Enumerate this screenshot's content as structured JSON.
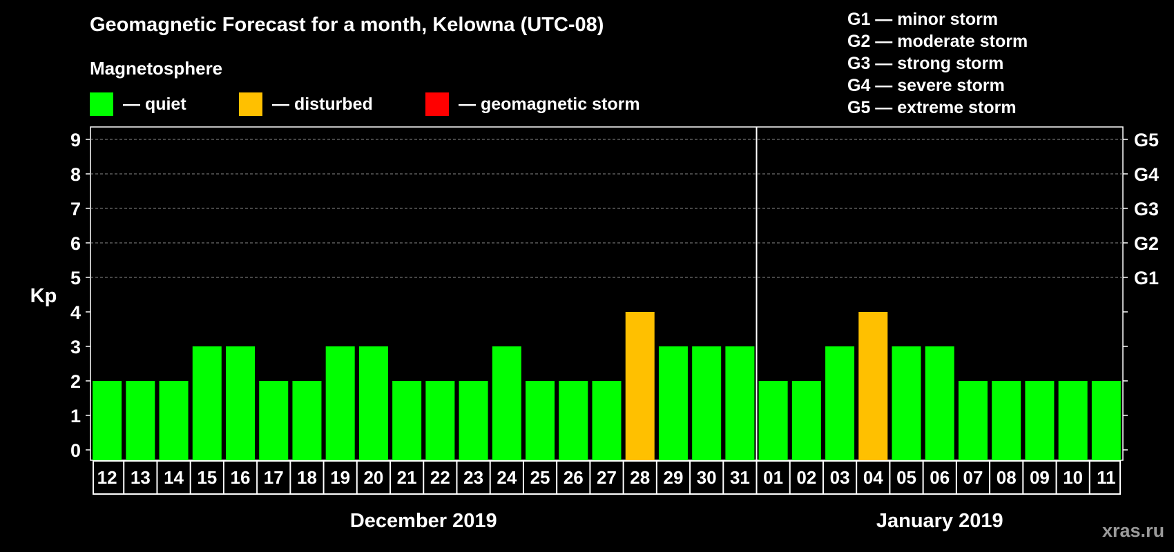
{
  "chart_data": {
    "type": "bar",
    "title": "Geomagnetic Forecast for a month, Kelowna (UTC-08)",
    "subtitle": "Magnetosphere",
    "ylabel": "Kp",
    "ylim": [
      0,
      9
    ],
    "y_ticks": [
      "0",
      "1",
      "2",
      "3",
      "4",
      "5",
      "6",
      "7",
      "8",
      "9"
    ],
    "right_axis_labels": [
      {
        "kp": 5,
        "label": "G1"
      },
      {
        "kp": 6,
        "label": "G2"
      },
      {
        "kp": 7,
        "label": "G3"
      },
      {
        "kp": 8,
        "label": "G4"
      },
      {
        "kp": 9,
        "label": "G5"
      }
    ],
    "categories": [
      "12",
      "13",
      "14",
      "15",
      "16",
      "17",
      "18",
      "19",
      "20",
      "21",
      "22",
      "23",
      "24",
      "25",
      "26",
      "27",
      "28",
      "29",
      "30",
      "31",
      "01",
      "02",
      "03",
      "04",
      "05",
      "06",
      "07",
      "08",
      "09",
      "10",
      "11"
    ],
    "values": [
      2,
      2,
      2,
      3,
      3,
      2,
      2,
      3,
      3,
      2,
      2,
      2,
      3,
      2,
      2,
      2,
      4,
      3,
      3,
      3,
      2,
      2,
      3,
      4,
      3,
      3,
      2,
      2,
      2,
      2,
      2
    ],
    "status": [
      "quiet",
      "quiet",
      "quiet",
      "quiet",
      "quiet",
      "quiet",
      "quiet",
      "quiet",
      "quiet",
      "quiet",
      "quiet",
      "quiet",
      "quiet",
      "quiet",
      "quiet",
      "quiet",
      "disturbed",
      "quiet",
      "quiet",
      "quiet",
      "quiet",
      "quiet",
      "quiet",
      "disturbed",
      "quiet",
      "quiet",
      "quiet",
      "quiet",
      "quiet",
      "quiet",
      "quiet"
    ],
    "months": [
      {
        "label": "December 2019",
        "first": 0,
        "last": 19
      },
      {
        "label": "January 2019",
        "first": 20,
        "last": 30
      }
    ],
    "legend": [
      {
        "key": "quiet",
        "label": "— quiet",
        "color": "#00ff00"
      },
      {
        "key": "disturbed",
        "label": "— disturbed",
        "color": "#ffc000"
      },
      {
        "key": "storm",
        "label": "— geomagnetic storm",
        "color": "#ff0000"
      }
    ],
    "storm_scale": [
      "G1 — minor storm",
      "G2 — moderate storm",
      "G3 — strong storm",
      "G4 — severe storm",
      "G5 — extreme storm"
    ]
  },
  "watermark": "xras.ru"
}
